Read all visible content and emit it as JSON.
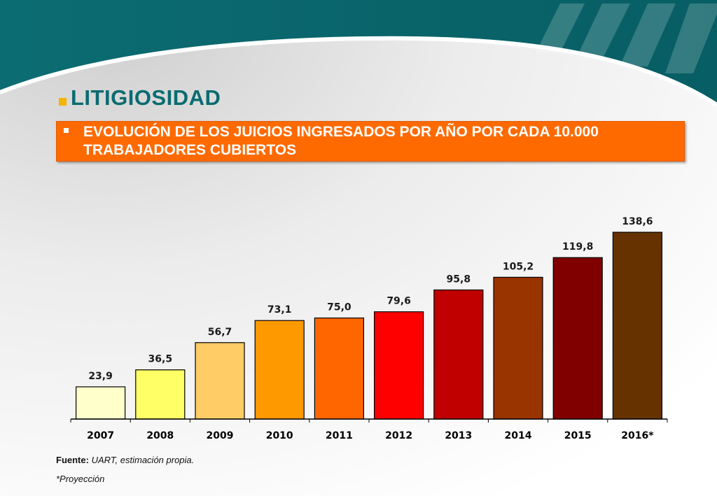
{
  "header": {
    "title": "LITIGIOSIDAD",
    "banner_text": "EVOLUCIÓN DE LOS JUICIOS INGRESADOS POR AÑO POR CADA 10.000 TRABAJADORES CUBIERTOS"
  },
  "footer": {
    "source_label": "Fuente:",
    "source_text": "UART, estimación propia.",
    "note": "*Proyección"
  },
  "colors": {
    "teal": "#0a6b71",
    "banner": "#ff6a00",
    "title_bullet": "#f4b400"
  },
  "chart_data": {
    "type": "bar",
    "categories": [
      "2007",
      "2008",
      "2009",
      "2010",
      "2011",
      "2012",
      "2013",
      "2014",
      "2015",
      "2016*"
    ],
    "values": [
      23.9,
      36.5,
      56.7,
      73.1,
      75.0,
      79.6,
      95.8,
      105.2,
      119.8,
      138.6
    ],
    "value_labels": [
      "23,9",
      "36,5",
      "56,7",
      "73,1",
      "75,0",
      "79,6",
      "95,8",
      "105,2",
      "119,8",
      "138,6"
    ],
    "bar_colors": [
      "#ffffcc",
      "#ffff66",
      "#ffcc66",
      "#ff9900",
      "#ff6600",
      "#ff0000",
      "#c00000",
      "#993300",
      "#800000",
      "#663300"
    ],
    "title": "",
    "xlabel": "",
    "ylabel": "",
    "ylim": [
      0,
      145
    ],
    "grid": false,
    "legend": "none"
  }
}
